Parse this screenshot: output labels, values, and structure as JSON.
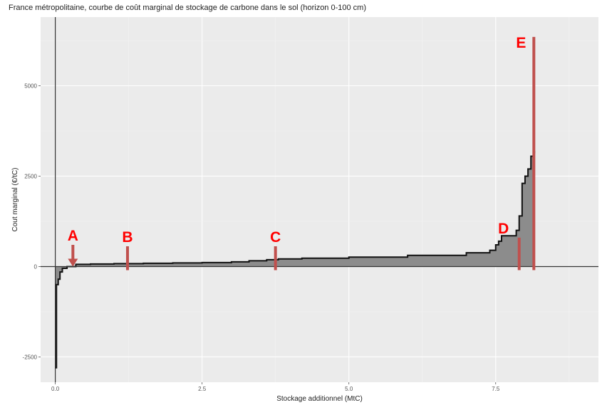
{
  "chart_data": {
    "type": "area",
    "title": "France métropolitaine, courbe de coût marginal de stockage de carbone dans le sol (horizon 0-100 cm)",
    "xlabel": "Stockage additionnel (MtC)",
    "ylabel": "Cout marginal (€/tC)",
    "xlim": [
      -0.25,
      9.25
    ],
    "ylim": [
      -3200,
      6900
    ],
    "x_ticks": [
      0.0,
      2.5,
      5.0,
      7.5
    ],
    "x_tick_labels": [
      "0.0",
      "2.5",
      "5.0",
      "7.5"
    ],
    "y_ticks": [
      -2500,
      0,
      2500,
      5000
    ],
    "y_tick_labels": [
      "-2500",
      "0",
      "2500",
      "5000"
    ],
    "grid": true,
    "step_curve": {
      "x": [
        0.0,
        0.02,
        0.05,
        0.08,
        0.12,
        0.2,
        0.35,
        0.6,
        1.0,
        1.5,
        2.0,
        2.5,
        3.0,
        3.3,
        3.6,
        3.8,
        4.2,
        5.0,
        6.0,
        7.0,
        7.4,
        7.5,
        7.55,
        7.6,
        7.85,
        7.9,
        7.95,
        8.0,
        8.05,
        8.1,
        8.15,
        8.16
      ],
      "y": [
        -2800,
        -500,
        -350,
        -150,
        -50,
        0,
        60,
        70,
        80,
        90,
        100,
        110,
        130,
        160,
        190,
        210,
        230,
        260,
        310,
        380,
        450,
        600,
        700,
        850,
        1000,
        1400,
        2300,
        2500,
        2700,
        3050,
        3150,
        3200
      ]
    },
    "markers": [
      {
        "label": "A",
        "x": 0.3,
        "y_bottom": 0,
        "y_top": 600
      },
      {
        "label": "B",
        "x": 1.23,
        "y_bottom": -100,
        "y_top": 560
      },
      {
        "label": "C",
        "x": 3.75,
        "y_bottom": -100,
        "y_top": 560
      },
      {
        "label": "D",
        "x": 7.9,
        "y_bottom": -100,
        "y_top": 800
      },
      {
        "label": "E",
        "x": 8.15,
        "y_bottom": -100,
        "y_top": 6350
      }
    ],
    "colors": {
      "panel": "#ebebeb",
      "grid_major": "#ffffff",
      "grid_minor": "#f4f4f4",
      "area_fill": "#8c8c8c",
      "curve": "#111111",
      "marker_line": "#c0504d",
      "marker_text": "#ff0000"
    }
  }
}
